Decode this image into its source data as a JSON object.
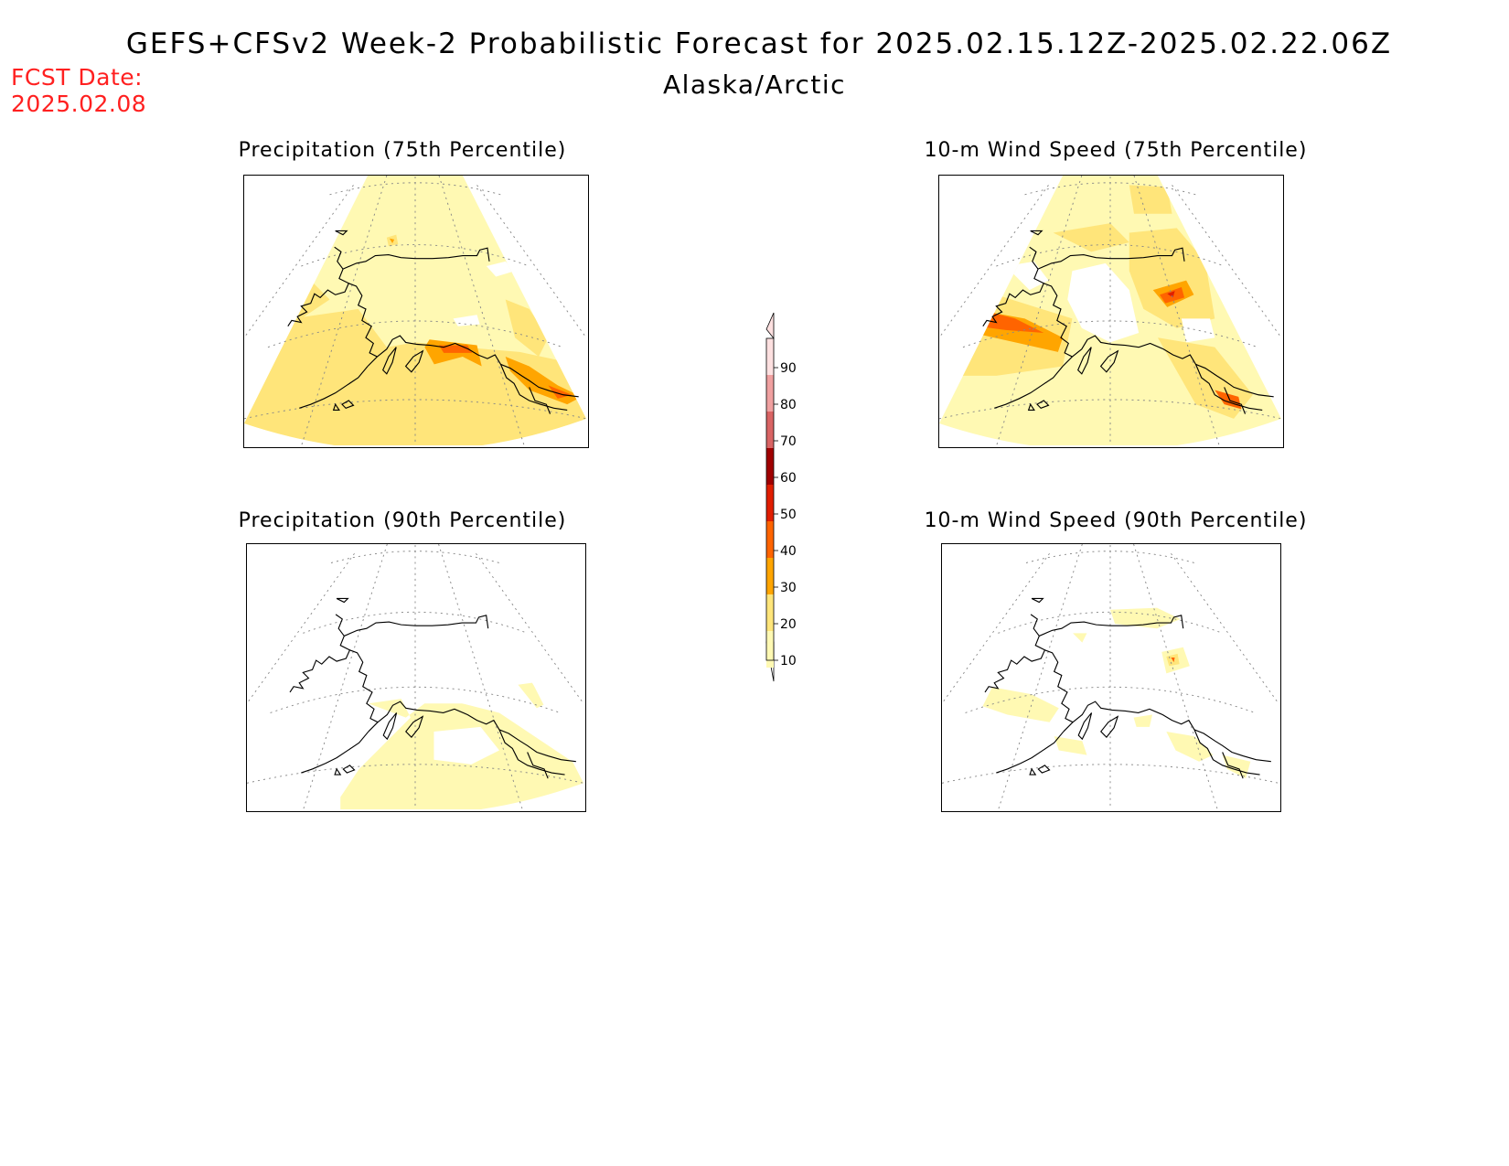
{
  "header": {
    "title": "GEFS+CFSv2 Week-2 Probabilistic Forecast for 2025.02.15.12Z-2025.02.22.06Z",
    "region": "Alaska/Arctic",
    "fcst_label": "FCST Date:",
    "fcst_date": "2025.02.08"
  },
  "panels": [
    {
      "title": "Precipitation (75th Percentile)",
      "variable": "precipitation",
      "percentile": 75
    },
    {
      "title": "10-m Wind Speed (75th Percentile)",
      "variable": "wind_speed",
      "percentile": 75
    },
    {
      "title": "Precipitation (90th Percentile)",
      "variable": "precipitation",
      "percentile": 90
    },
    {
      "title": "10-m Wind Speed (90th Percentile)",
      "variable": "wind_speed",
      "percentile": 90
    }
  ],
  "colorbar": {
    "levels": [
      "10",
      "20",
      "30",
      "40",
      "50",
      "60",
      "70",
      "80",
      "90"
    ],
    "colors": [
      "#fff9b3",
      "#ffe57a",
      "#ffa500",
      "#ff6400",
      "#e01e00",
      "#a00000",
      "#d96464",
      "#f0a0a0",
      "#fde0e0"
    ]
  }
}
